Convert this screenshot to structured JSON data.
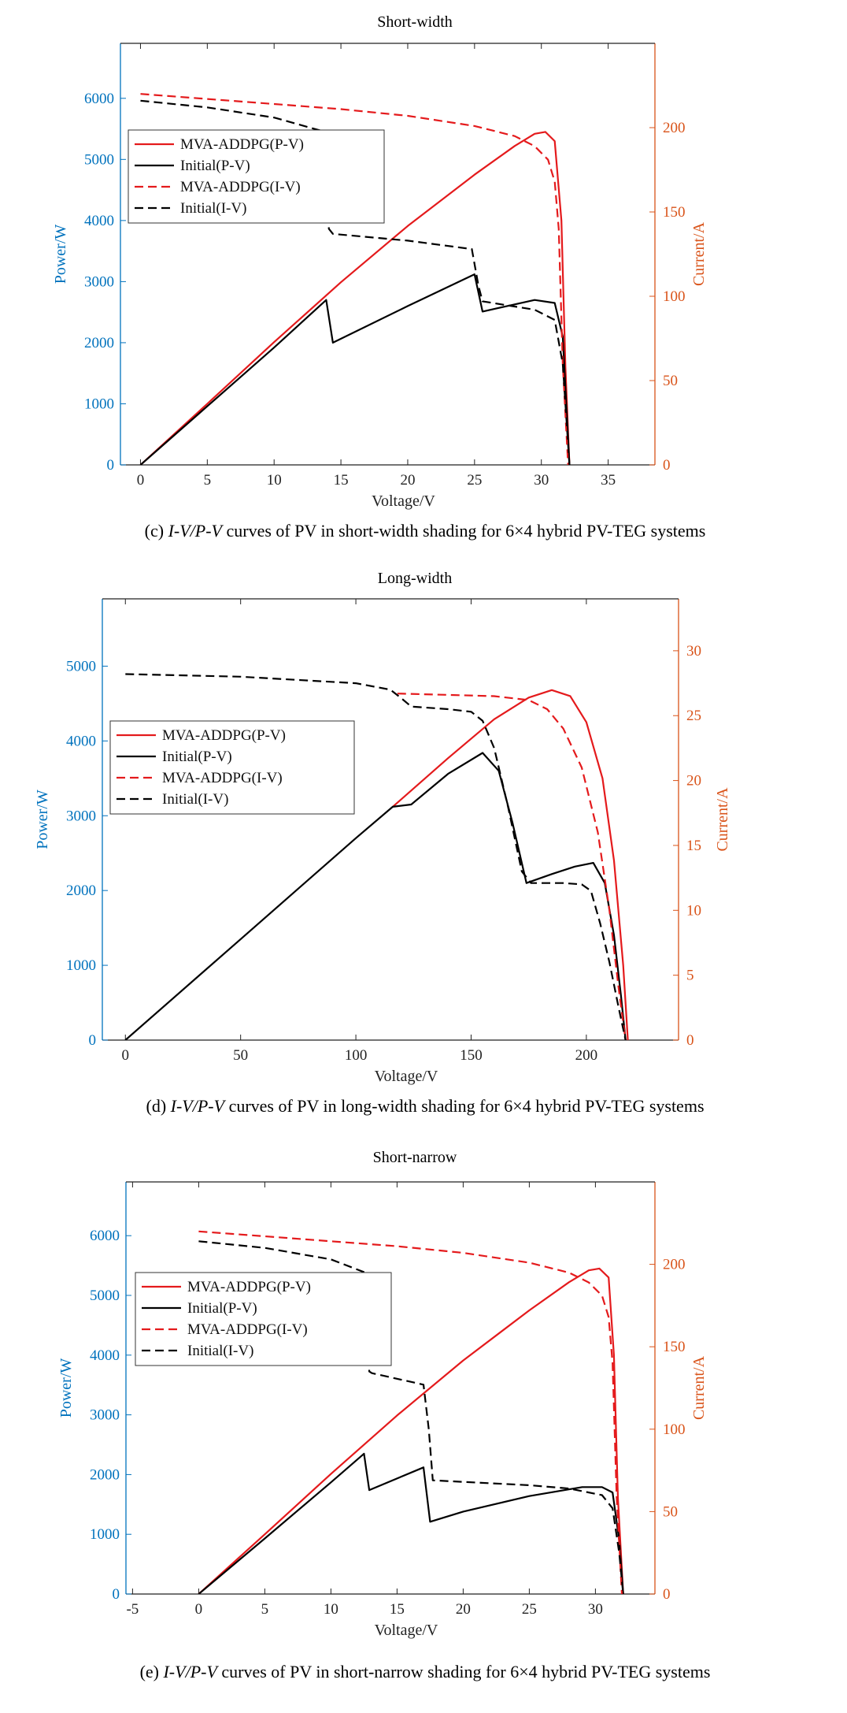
{
  "colors": {
    "left_axis": "#0072BD",
    "right_axis": "#D95319",
    "red": "#E41A1C",
    "black": "#000000"
  },
  "chart_data": [
    {
      "type": "line",
      "title": "Short-width",
      "xlabel": "Voltage/V",
      "ylabel_left": "Power/W",
      "ylabel_right": "Current/A",
      "xlim": [
        -1.5,
        38.5
      ],
      "ylim_left": [
        0,
        6900
      ],
      "ylim_right": [
        0,
        250
      ],
      "xticks": [
        0,
        5,
        10,
        15,
        20,
        25,
        30,
        35
      ],
      "yticks_left": [
        0,
        1000,
        2000,
        3000,
        4000,
        5000,
        6000
      ],
      "yticks_right": [
        0,
        50,
        100,
        150,
        200
      ],
      "legend_position": "upper-left",
      "caption_prefix": "(c) ",
      "caption_italic": "I-V/P-V",
      "caption_rest": " curves of PV in short-width shading for 6×4 hybrid PV-TEG systems",
      "series": [
        {
          "name": "MVA-ADDPG(P-V)",
          "axis": "left",
          "style": "solid",
          "color": "#E41A1C",
          "x": [
            0,
            5,
            10,
            15,
            20,
            25,
            28,
            29.5,
            30.3,
            31,
            31.5,
            31.8,
            32.1
          ],
          "y": [
            0,
            1000,
            2010,
            2990,
            3910,
            4750,
            5220,
            5420,
            5450,
            5300,
            4000,
            1600,
            0
          ]
        },
        {
          "name": "Initial(P-V)",
          "axis": "left",
          "style": "solid",
          "color": "#000000",
          "x": [
            0,
            5,
            10,
            13.9,
            14.4,
            20,
            25,
            25.6,
            29.5,
            31,
            31.6,
            32.1
          ],
          "y": [
            0,
            960,
            1920,
            2700,
            2000,
            2600,
            3120,
            2510,
            2700,
            2650,
            2100,
            0
          ]
        },
        {
          "name": "MVA-ADDPG(I-V)",
          "axis": "right",
          "style": "dashed",
          "color": "#E41A1C",
          "x": [
            0,
            5,
            10,
            15,
            20,
            25,
            28,
            29.5,
            30.5,
            31,
            31.3,
            31.6,
            32
          ],
          "y": [
            220,
            217,
            214,
            211,
            207,
            201,
            195,
            189,
            181,
            168,
            140,
            60,
            0
          ]
        },
        {
          "name": "Initial(I-V)",
          "axis": "right",
          "style": "dashed",
          "color": "#000000",
          "x": [
            0,
            5,
            10,
            13.6,
            14.1,
            14.4,
            20,
            24.8,
            25.3,
            25.6,
            29.5,
            31,
            31.6,
            32.1
          ],
          "y": [
            216,
            212,
            206,
            198,
            140,
            137,
            133,
            128,
            106,
            97,
            92,
            86,
            60,
            0
          ]
        }
      ]
    },
    {
      "type": "line",
      "title": "Long-width",
      "xlabel": "Voltage/V",
      "ylabel_left": "Power/W",
      "ylabel_right": "Current/A",
      "xlim": [
        -10,
        240
      ],
      "ylim_left": [
        0,
        5900
      ],
      "ylim_right": [
        0,
        34
      ],
      "xticks": [
        0,
        50,
        100,
        150,
        200
      ],
      "yticks_left": [
        0,
        1000,
        2000,
        3000,
        4000,
        5000
      ],
      "yticks_right": [
        0,
        5,
        10,
        15,
        20,
        25,
        30
      ],
      "legend_position": "middle-left",
      "caption_prefix": "(d) ",
      "caption_italic": "I-V/P-V",
      "caption_rest": " curves of PV in long-width shading for 6×4 hybrid PV-TEG systems",
      "series": [
        {
          "name": "MVA-ADDPG(P-V)",
          "axis": "left",
          "style": "solid",
          "color": "#E41A1C",
          "x": [
            116,
            140,
            160,
            175,
            185,
            193,
            200,
            207,
            212,
            216,
            218
          ],
          "y": [
            3120,
            3770,
            4290,
            4580,
            4680,
            4600,
            4250,
            3500,
            2400,
            1000,
            0
          ]
        },
        {
          "name": "Initial(P-V)",
          "axis": "left",
          "style": "solid",
          "color": "#000000",
          "x": [
            0,
            50,
            100,
            116,
            124,
            140,
            155,
            162,
            168,
            174,
            185,
            195,
            203,
            208,
            212,
            215,
            217
          ],
          "y": [
            0,
            1350,
            2700,
            3120,
            3150,
            3560,
            3840,
            3600,
            2900,
            2100,
            2220,
            2320,
            2370,
            2100,
            1400,
            600,
            0
          ]
        },
        {
          "name": "MVA-ADDPG(I-V)",
          "axis": "right",
          "style": "dashed",
          "color": "#E41A1C",
          "x": [
            118,
            140,
            160,
            175,
            183,
            190,
            198,
            205,
            210,
            214,
            217
          ],
          "y": [
            26.7,
            26.6,
            26.5,
            26.2,
            25.5,
            24,
            21,
            16,
            10,
            4,
            0
          ]
        },
        {
          "name": "Initial(I-V)",
          "axis": "right",
          "style": "dashed",
          "color": "#000000",
          "x": [
            0,
            50,
            100,
            115,
            120,
            124,
            140,
            150,
            155,
            160,
            166,
            172,
            176,
            190,
            198,
            202,
            206,
            210,
            214,
            217
          ],
          "y": [
            28.2,
            28,
            27.5,
            27,
            26.3,
            25.7,
            25.5,
            25.3,
            24.6,
            22.5,
            18,
            13,
            12.1,
            12.1,
            12,
            11.5,
            9,
            6,
            2.5,
            0
          ]
        }
      ]
    },
    {
      "type": "line",
      "title": "Short-narrow",
      "xlabel": "Voltage/V",
      "ylabel_left": "Power/W",
      "ylabel_right": "Current/A",
      "xlim": [
        -5.5,
        34.5
      ],
      "ylim_left": [
        0,
        6900
      ],
      "ylim_right": [
        0,
        250
      ],
      "xticks": [
        -5,
        0,
        5,
        10,
        15,
        20,
        25,
        30
      ],
      "yticks_left": [
        0,
        1000,
        2000,
        3000,
        4000,
        5000,
        6000
      ],
      "yticks_right": [
        0,
        50,
        100,
        150,
        200
      ],
      "legend_position": "upper-left",
      "caption_prefix": "(e) ",
      "caption_italic": "I-V/P-V",
      "caption_rest": " curves of PV in short-narrow shading for 6×4 hybrid PV-TEG systems",
      "series": [
        {
          "name": "MVA-ADDPG(P-V)",
          "axis": "left",
          "style": "solid",
          "color": "#E41A1C",
          "x": [
            0,
            5,
            10,
            15,
            20,
            25,
            28,
            29.5,
            30.3,
            31,
            31.4,
            31.7,
            32.1
          ],
          "y": [
            0,
            1000,
            2010,
            2990,
            3910,
            4750,
            5220,
            5420,
            5450,
            5300,
            4000,
            1600,
            0
          ]
        },
        {
          "name": "Initial(P-V)",
          "axis": "left",
          "style": "solid",
          "color": "#000000",
          "x": [
            0,
            5,
            10,
            12.5,
            12.9,
            17,
            17.5,
            20,
            25,
            29,
            30.5,
            31.3,
            31.8,
            32.1
          ],
          "y": [
            0,
            930,
            1870,
            2350,
            1740,
            2120,
            1210,
            1380,
            1640,
            1790,
            1790,
            1700,
            900,
            0
          ]
        },
        {
          "name": "MVA-ADDPG(I-V)",
          "axis": "right",
          "style": "dashed",
          "color": "#E41A1C",
          "x": [
            0,
            5,
            10,
            15,
            20,
            25,
            28,
            29.5,
            30.5,
            31,
            31.3,
            31.6,
            32
          ],
          "y": [
            220,
            217,
            214,
            211,
            207,
            201,
            195,
            189,
            181,
            168,
            140,
            60,
            0
          ]
        },
        {
          "name": "Initial(I-V)",
          "axis": "right",
          "style": "dashed",
          "color": "#000000",
          "x": [
            0,
            5,
            10,
            12.6,
            12.9,
            13.1,
            17,
            17.4,
            17.7,
            20,
            25,
            28,
            30.5,
            31.3,
            31.8,
            32.1
          ],
          "y": [
            214,
            210,
            203,
            195,
            135,
            134,
            127,
            100,
            69,
            68,
            66,
            64,
            60,
            52,
            25,
            0
          ]
        }
      ]
    }
  ]
}
